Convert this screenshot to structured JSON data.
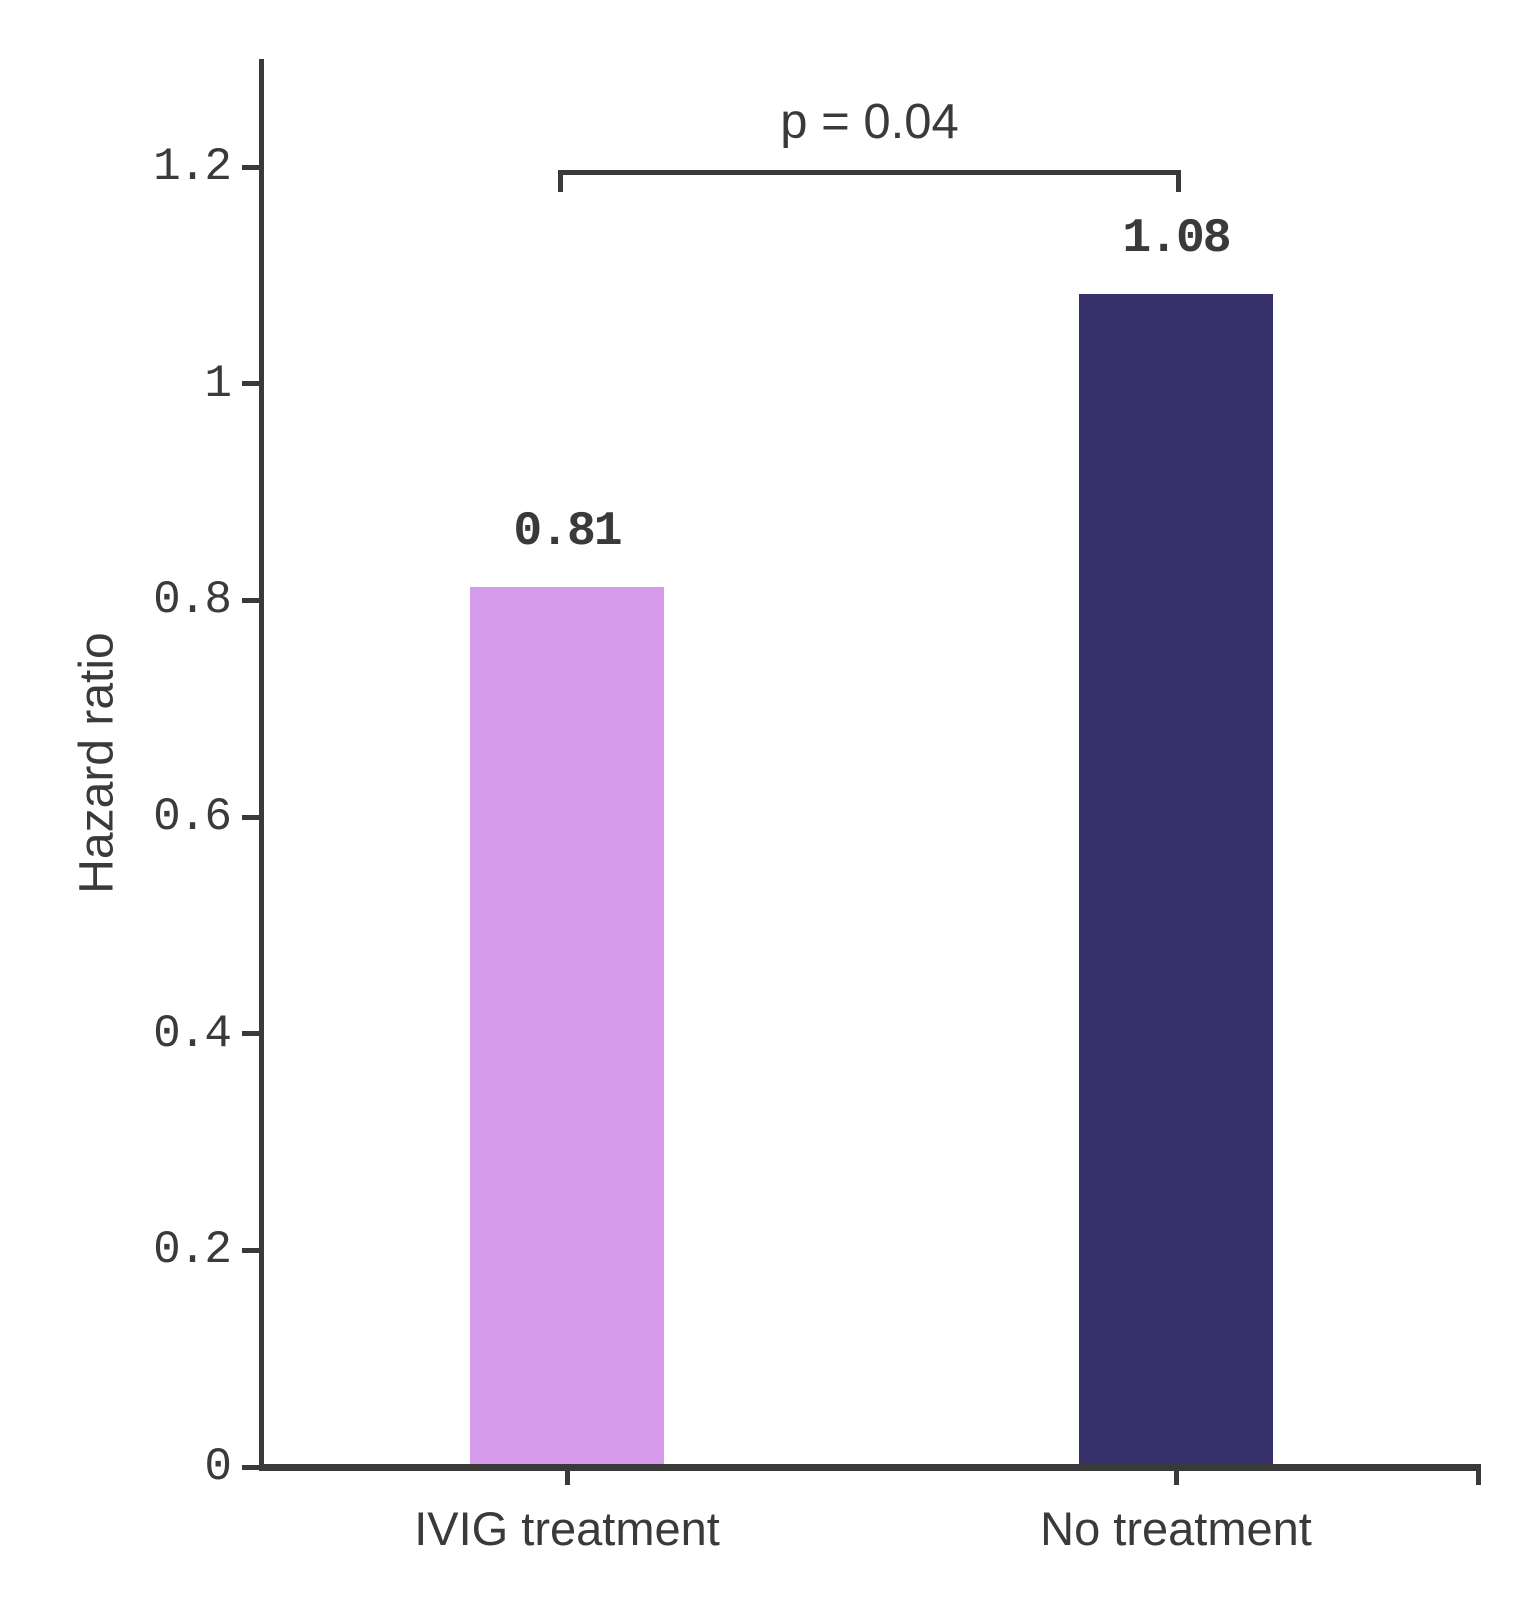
{
  "chart_data": {
    "type": "bar",
    "title": "",
    "xlabel": "",
    "ylabel": "Hazard ratio",
    "categories": [
      "IVIG treatment",
      "No treatment"
    ],
    "values": [
      0.81,
      1.08
    ],
    "value_labels": [
      "0.81",
      "1.08"
    ],
    "bar_colors": [
      "#d59ae9",
      "#36316b"
    ],
    "ylim": [
      0,
      1.3
    ],
    "yticks": [
      0,
      0.2,
      0.4,
      0.6,
      0.8,
      1,
      1.2
    ],
    "ytick_labels": [
      "0",
      "0.2",
      "0.4",
      "0.6",
      "0.8",
      "1",
      "1.2"
    ],
    "grid": false,
    "legend": "none",
    "annotation": {
      "type": "significance-bracket",
      "text": "p = 0.04",
      "between": [
        "IVIG treatment",
        "No treatment"
      ]
    }
  },
  "colors": {
    "axis": "#3a3a3a",
    "text": "#3a3a3a",
    "background": "#ffffff",
    "bar_ivig_treatment": "#d59ae9",
    "bar_no_treatment": "#36316b"
  }
}
